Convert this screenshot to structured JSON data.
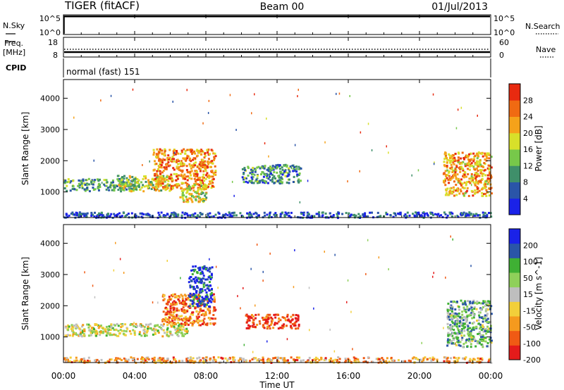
{
  "header": {
    "station": "TIGER (fitACF)",
    "beam": "Beam 00",
    "date": "01/Jul/2013"
  },
  "nsky_panel": {
    "left_label": "N.Sky",
    "right_label": "N.Search",
    "left_ticks": [
      "10^5",
      "10^0"
    ],
    "right_ticks": [
      "10^5",
      "10^0"
    ]
  },
  "freq_panel": {
    "left_label_1": "Freq.",
    "left_label_2": "[MHz]",
    "right_label": "Nave",
    "left_ticks": [
      "18",
      "8"
    ],
    "right_ticks": [
      "60",
      "0"
    ]
  },
  "cpid_panel": {
    "label": "CPID",
    "value": "normal (fast) 151"
  },
  "x_axis": {
    "label": "Time UT",
    "ticks": [
      "00:00",
      "04:00",
      "08:00",
      "12:00",
      "16:00",
      "20:00",
      "00:00"
    ]
  },
  "colors": {
    "power_scale": [
      "#1a22e8",
      "#2a55a8",
      "#3f8f6a",
      "#77c84a",
      "#d8e02a",
      "#f5a21a",
      "#f06a12",
      "#e82a10"
    ],
    "velocity_scale": [
      "#e41b1b",
      "#f05a14",
      "#f59a1e",
      "#f2cf3a",
      "#bebebe",
      "#8fd05a",
      "#3fb034",
      "#2a55a8",
      "#1a22e8"
    ]
  },
  "chart_data": [
    {
      "type": "heatmap",
      "title": "",
      "xlabel": "",
      "ylabel": "Slant Range [km]",
      "xlim": [
        0,
        24
      ],
      "ylim": [
        180,
        4600
      ],
      "yticks": [
        "1000",
        "2000",
        "3000",
        "4000"
      ],
      "colorbar": {
        "label": "Power [dB]",
        "ticks": [
          "4",
          "8",
          "12",
          "16",
          "20",
          "24",
          "28"
        ]
      },
      "bands": [
        {
          "t0": 0.0,
          "t1": 4.0,
          "r0": 1050,
          "r1": 1450,
          "level": 0.35
        },
        {
          "t0": 3.0,
          "t1": 6.0,
          "r0": 1050,
          "r1": 1550,
          "level": 0.5
        },
        {
          "t0": 5.0,
          "t1": 8.5,
          "r0": 1100,
          "r1": 2400,
          "level": 0.75
        },
        {
          "t0": 6.5,
          "t1": 8.0,
          "r0": 700,
          "r1": 1300,
          "level": 0.55
        },
        {
          "t0": 10.0,
          "t1": 13.3,
          "r0": 1300,
          "r1": 1900,
          "level": 0.3
        },
        {
          "t0": 21.3,
          "t1": 24.0,
          "r0": 900,
          "r1": 2300,
          "level": 0.7
        },
        {
          "t0": 0.0,
          "t1": 24.0,
          "r0": 200,
          "r1": 380,
          "level": 0.15
        }
      ]
    },
    {
      "type": "heatmap",
      "title": "",
      "xlabel": "Time UT",
      "ylabel": "Slant Range [km]",
      "xlim": [
        0,
        24
      ],
      "ylim": [
        180,
        4600
      ],
      "yticks": [
        "1000",
        "2000",
        "3000",
        "4000"
      ],
      "colorbar": {
        "label": "Velocity [m s^-1]",
        "ticks": [
          "200",
          "100",
          "50",
          "15",
          "-15",
          "-50",
          "-100",
          "-200"
        ]
      },
      "bands": [
        {
          "t0": 0.0,
          "t1": 7.0,
          "r0": 1050,
          "r1": 1450,
          "level": 0.5
        },
        {
          "t0": 5.5,
          "t1": 8.5,
          "r0": 1400,
          "r1": 2400,
          "level": 0.2
        },
        {
          "t0": 7.0,
          "t1": 8.3,
          "r0": 2000,
          "r1": 3300,
          "level": 0.9
        },
        {
          "t0": 10.2,
          "t1": 13.2,
          "r0": 1300,
          "r1": 1750,
          "level": 0.1
        },
        {
          "t0": 21.5,
          "t1": 24.0,
          "r0": 700,
          "r1": 2200,
          "level": 0.65
        },
        {
          "t0": 0.0,
          "t1": 24.0,
          "r0": 200,
          "r1": 380,
          "level": 0.3
        }
      ]
    }
  ]
}
